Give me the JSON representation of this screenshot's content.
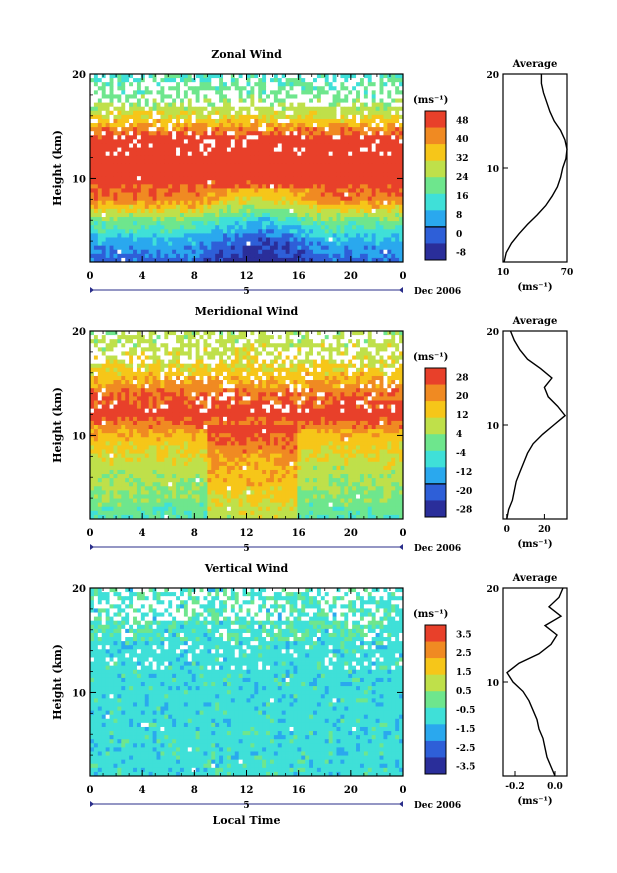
{
  "chart_data": [
    {
      "type": "heatmap",
      "title": "Zonal Wind",
      "ylabel": "Height (km)",
      "xlabel": "",
      "xlim": [
        0,
        24
      ],
      "ylim": [
        2,
        20
      ],
      "xticks": [
        "0",
        "4",
        "8",
        "12",
        "16",
        "20",
        "0"
      ],
      "yticks": [
        "10",
        "20"
      ],
      "date_marker": "5",
      "date_label": "Dec 2006",
      "colorbar": {
        "unit": "(ms⁻¹)",
        "ticks": [
          "48",
          "40",
          "32",
          "24",
          "16",
          "8",
          "0",
          "-8"
        ],
        "zero_line_tick": "0"
      },
      "profile_by_height": {
        "heights_km": [
          2,
          4,
          6,
          8,
          10,
          12,
          14,
          16,
          18,
          20
        ],
        "wind_ms": [
          0,
          8,
          22,
          42,
          50,
          54,
          48,
          30,
          20,
          16
        ]
      },
      "average": {
        "title": "Average",
        "xlabel": "(ms⁻¹)",
        "xticks": [
          "10",
          "70"
        ],
        "yticks": [
          "10",
          "20"
        ],
        "xlim": [
          10,
          70
        ],
        "ylim": [
          0,
          20
        ],
        "x": [
          11,
          13,
          18,
          25,
          33,
          42,
          50,
          56,
          61,
          64,
          66,
          69,
          70,
          68,
          64,
          58,
          54,
          51,
          48,
          46,
          46
        ],
        "y": [
          0,
          1,
          2,
          3,
          4,
          5,
          6,
          7,
          8,
          9,
          10,
          11,
          12,
          13,
          14,
          15,
          16,
          17,
          18,
          19,
          20
        ]
      }
    },
    {
      "type": "heatmap",
      "title": "Meridional Wind",
      "ylabel": "Height (km)",
      "xlabel": "",
      "xlim": [
        0,
        24
      ],
      "ylim": [
        2,
        20
      ],
      "xticks": [
        "0",
        "4",
        "8",
        "12",
        "16",
        "20",
        "0"
      ],
      "yticks": [
        "10",
        "20"
      ],
      "date_marker": "5",
      "date_label": "Dec 2006",
      "colorbar": {
        "unit": "(ms⁻¹)",
        "ticks": [
          "28",
          "20",
          "12",
          "4",
          "-4",
          "-12",
          "-20",
          "-28"
        ],
        "zero_line_tick": "0"
      },
      "profile_by_height": {
        "heights_km": [
          2,
          4,
          6,
          8,
          10,
          12,
          14,
          16,
          18,
          20
        ],
        "wind_ms": [
          -5,
          0,
          4,
          8,
          14,
          28,
          22,
          12,
          6,
          4
        ]
      },
      "average": {
        "title": "Average",
        "xlabel": "(ms⁻¹)",
        "xticks": [
          "0",
          "20"
        ],
        "yticks": [
          "10",
          "20"
        ],
        "xlim": [
          -2,
          32
        ],
        "ylim": [
          0,
          20
        ],
        "x": [
          0,
          1,
          3,
          4,
          5,
          7,
          9,
          11,
          14,
          19,
          25,
          31,
          27,
          22,
          20,
          24,
          18,
          11,
          7,
          4,
          2
        ],
        "y": [
          0,
          1,
          2,
          3,
          4,
          5,
          6,
          7,
          8,
          9,
          10,
          11,
          12,
          13,
          14,
          15,
          16,
          17,
          18,
          19,
          20
        ]
      }
    },
    {
      "type": "heatmap",
      "title": "Vertical Wind",
      "ylabel": "Height (km)",
      "xlabel": "Local Time",
      "xlim": [
        0,
        24
      ],
      "ylim": [
        2,
        20
      ],
      "xticks": [
        "0",
        "4",
        "8",
        "12",
        "16",
        "20",
        "0"
      ],
      "yticks": [
        "10",
        "20"
      ],
      "date_marker": "5",
      "date_label": "Dec 2006",
      "colorbar": {
        "unit": "(ms⁻¹)",
        "ticks": [
          "3.5",
          "2.5",
          "1.5",
          "0.5",
          "-0.5",
          "-1.5",
          "-2.5",
          "-3.5"
        ]
      },
      "average": {
        "title": "Average",
        "xlabel": "(ms⁻¹)",
        "xticks": [
          "-0.2",
          "0.0"
        ],
        "yticks": [
          "10",
          "20"
        ],
        "xlim": [
          -0.26,
          0.06
        ],
        "ylim": [
          0,
          20
        ],
        "x": [
          0.0,
          -0.02,
          -0.04,
          -0.05,
          -0.06,
          -0.08,
          -0.09,
          -0.11,
          -0.13,
          -0.16,
          -0.21,
          -0.24,
          -0.18,
          -0.08,
          -0.02,
          0.01,
          -0.05,
          0.03,
          -0.03,
          0.02,
          0.04
        ],
        "y": [
          0,
          1,
          2,
          3,
          4,
          5,
          6,
          7,
          8,
          9,
          10,
          11,
          12,
          13,
          14,
          15,
          16,
          17,
          18,
          19,
          20
        ]
      }
    }
  ]
}
